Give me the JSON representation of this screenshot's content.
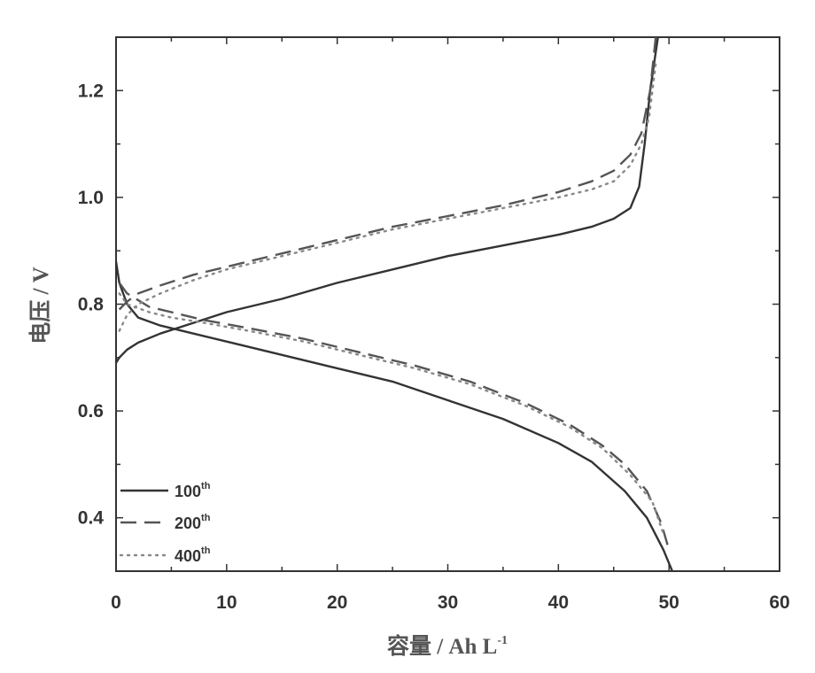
{
  "chart_data": {
    "type": "line",
    "title": "",
    "xlabel": "容量 / Ah L",
    "xlabel_sup": "-1",
    "ylabel": "电压 / V",
    "xlim": [
      0,
      60
    ],
    "ylim": [
      0.3,
      1.3
    ],
    "xticks": [
      0,
      10,
      20,
      30,
      40,
      50,
      60
    ],
    "yticks": [
      0.4,
      0.6,
      0.8,
      1.0,
      1.2
    ],
    "xtick_labels": [
      "0",
      "10",
      "20",
      "30",
      "40",
      "50",
      "60"
    ],
    "ytick_labels": [
      "0.4",
      "0.6",
      "0.8",
      "1.0",
      "1.2"
    ],
    "legend_position": "bottom-left",
    "series": [
      {
        "name": "100",
        "sup": "th",
        "style": "solid",
        "color": "#333333",
        "charge": [
          [
            0,
            0.69
          ],
          [
            0.3,
            0.7
          ],
          [
            1,
            0.715
          ],
          [
            2,
            0.728
          ],
          [
            4,
            0.745
          ],
          [
            7,
            0.765
          ],
          [
            10,
            0.785
          ],
          [
            15,
            0.81
          ],
          [
            20,
            0.84
          ],
          [
            25,
            0.865
          ],
          [
            30,
            0.89
          ],
          [
            35,
            0.91
          ],
          [
            40,
            0.93
          ],
          [
            43,
            0.945
          ],
          [
            45,
            0.96
          ],
          [
            46.5,
            0.98
          ],
          [
            47.3,
            1.02
          ],
          [
            47.8,
            1.1
          ],
          [
            48.3,
            1.2
          ],
          [
            49,
            1.3
          ]
        ],
        "discharge": [
          [
            0,
            0.88
          ],
          [
            0.3,
            0.84
          ],
          [
            1,
            0.8
          ],
          [
            2,
            0.775
          ],
          [
            4,
            0.76
          ],
          [
            7,
            0.745
          ],
          [
            10,
            0.73
          ],
          [
            15,
            0.705
          ],
          [
            20,
            0.68
          ],
          [
            25,
            0.655
          ],
          [
            30,
            0.62
          ],
          [
            35,
            0.585
          ],
          [
            40,
            0.54
          ],
          [
            43,
            0.505
          ],
          [
            46,
            0.45
          ],
          [
            48,
            0.4
          ],
          [
            49.5,
            0.34
          ],
          [
            50.3,
            0.3
          ]
        ]
      },
      {
        "name": "200",
        "sup": "th",
        "style": "dashed",
        "color": "#555555",
        "charge": [
          [
            0.3,
            0.79
          ],
          [
            1,
            0.805
          ],
          [
            2,
            0.82
          ],
          [
            4,
            0.835
          ],
          [
            7,
            0.855
          ],
          [
            10,
            0.87
          ],
          [
            15,
            0.895
          ],
          [
            20,
            0.92
          ],
          [
            25,
            0.945
          ],
          [
            30,
            0.965
          ],
          [
            35,
            0.985
          ],
          [
            40,
            1.01
          ],
          [
            43,
            1.03
          ],
          [
            45,
            1.05
          ],
          [
            46.5,
            1.08
          ],
          [
            47.5,
            1.12
          ],
          [
            48.3,
            1.2
          ],
          [
            48.8,
            1.3
          ]
        ],
        "discharge": [
          [
            0.3,
            0.84
          ],
          [
            1,
            0.82
          ],
          [
            3,
            0.795
          ],
          [
            5,
            0.785
          ],
          [
            8,
            0.77
          ],
          [
            12,
            0.755
          ],
          [
            17,
            0.735
          ],
          [
            22,
            0.71
          ],
          [
            27,
            0.685
          ],
          [
            32,
            0.655
          ],
          [
            37,
            0.615
          ],
          [
            41,
            0.575
          ],
          [
            44,
            0.535
          ],
          [
            46,
            0.5
          ],
          [
            48,
            0.45
          ],
          [
            49.3,
            0.39
          ],
          [
            50,
            0.34
          ]
        ]
      },
      {
        "name": "400",
        "sup": "th",
        "style": "dotted",
        "color": "#888888",
        "charge": [
          [
            0.3,
            0.75
          ],
          [
            1,
            0.78
          ],
          [
            2,
            0.8
          ],
          [
            4,
            0.82
          ],
          [
            7,
            0.845
          ],
          [
            10,
            0.865
          ],
          [
            15,
            0.89
          ],
          [
            20,
            0.915
          ],
          [
            25,
            0.94
          ],
          [
            30,
            0.96
          ],
          [
            35,
            0.98
          ],
          [
            40,
            1.0
          ],
          [
            43,
            1.015
          ],
          [
            45,
            1.03
          ],
          [
            46.5,
            1.06
          ],
          [
            47.5,
            1.1
          ],
          [
            48.2,
            1.15
          ],
          [
            48.8,
            1.25
          ]
        ],
        "discharge": [
          [
            0.3,
            0.82
          ],
          [
            1,
            0.8
          ],
          [
            3,
            0.785
          ],
          [
            5,
            0.775
          ],
          [
            8,
            0.765
          ],
          [
            12,
            0.75
          ],
          [
            17,
            0.73
          ],
          [
            22,
            0.705
          ],
          [
            27,
            0.68
          ],
          [
            32,
            0.65
          ],
          [
            37,
            0.61
          ],
          [
            41,
            0.57
          ],
          [
            44,
            0.53
          ],
          [
            46.5,
            0.48
          ],
          [
            48.5,
            0.43
          ],
          [
            49.5,
            0.37
          ]
        ]
      }
    ]
  }
}
